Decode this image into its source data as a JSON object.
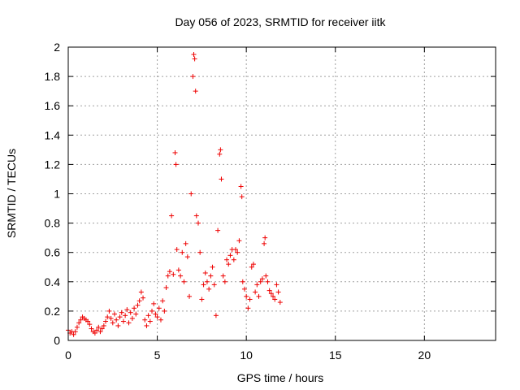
{
  "chart_data": {
    "type": "scatter",
    "title": "Day 056 of 2023, SRMTID for receiver iitk",
    "xlabel": "GPS time / hours",
    "ylabel": "SRMTID / TECUs",
    "xlim": [
      0,
      24
    ],
    "ylim": [
      0,
      2
    ],
    "xticks": [
      0,
      5,
      10,
      15,
      20
    ],
    "xtick_labels": [
      "0",
      "5",
      "10",
      "15",
      "20"
    ],
    "yticks": [
      0,
      0.2,
      0.4,
      0.6,
      0.8,
      1,
      1.2,
      1.4,
      1.6,
      1.8,
      2
    ],
    "ytick_labels": [
      "0",
      "0.2",
      "0.4",
      "0.6",
      "0.8",
      "1",
      "1.2",
      "1.4",
      "1.6",
      "1.8",
      "2"
    ],
    "grid": true,
    "marker": "+",
    "series_color": "#ee0000",
    "series": [
      {
        "name": "SRMTID",
        "points": [
          [
            0.0,
            0.07
          ],
          [
            0.1,
            0.05
          ],
          [
            0.2,
            0.06
          ],
          [
            0.3,
            0.04
          ],
          [
            0.4,
            0.06
          ],
          [
            0.5,
            0.09
          ],
          [
            0.6,
            0.12
          ],
          [
            0.7,
            0.14
          ],
          [
            0.8,
            0.16
          ],
          [
            0.9,
            0.15
          ],
          [
            1.0,
            0.14
          ],
          [
            1.1,
            0.13
          ],
          [
            1.2,
            0.11
          ],
          [
            1.3,
            0.08
          ],
          [
            1.4,
            0.06
          ],
          [
            1.5,
            0.05
          ],
          [
            1.6,
            0.07
          ],
          [
            1.7,
            0.09
          ],
          [
            1.8,
            0.06
          ],
          [
            1.9,
            0.08
          ],
          [
            2.0,
            0.1
          ],
          [
            2.1,
            0.13
          ],
          [
            2.2,
            0.16
          ],
          [
            2.3,
            0.2
          ],
          [
            2.4,
            0.15
          ],
          [
            2.5,
            0.12
          ],
          [
            2.6,
            0.18
          ],
          [
            2.7,
            0.14
          ],
          [
            2.8,
            0.1
          ],
          [
            2.9,
            0.16
          ],
          [
            3.0,
            0.19
          ],
          [
            3.1,
            0.13
          ],
          [
            3.2,
            0.17
          ],
          [
            3.3,
            0.21
          ],
          [
            3.4,
            0.12
          ],
          [
            3.5,
            0.19
          ],
          [
            3.6,
            0.15
          ],
          [
            3.7,
            0.22
          ],
          [
            3.8,
            0.18
          ],
          [
            3.9,
            0.24
          ],
          [
            4.0,
            0.27
          ],
          [
            4.1,
            0.33
          ],
          [
            4.2,
            0.29
          ],
          [
            4.3,
            0.14
          ],
          [
            4.4,
            0.1
          ],
          [
            4.5,
            0.17
          ],
          [
            4.6,
            0.13
          ],
          [
            4.7,
            0.2
          ],
          [
            4.8,
            0.25
          ],
          [
            4.9,
            0.18
          ],
          [
            5.0,
            0.16
          ],
          [
            5.1,
            0.22
          ],
          [
            5.2,
            0.14
          ],
          [
            5.3,
            0.27
          ],
          [
            5.4,
            0.2
          ],
          [
            5.5,
            0.36
          ],
          [
            5.6,
            0.44
          ],
          [
            5.7,
            0.47
          ],
          [
            5.8,
            0.85
          ],
          [
            5.9,
            0.45
          ],
          [
            6.0,
            1.28
          ],
          [
            6.05,
            1.2
          ],
          [
            6.1,
            0.62
          ],
          [
            6.2,
            0.48
          ],
          [
            6.3,
            0.44
          ],
          [
            6.4,
            0.6
          ],
          [
            6.5,
            0.4
          ],
          [
            6.6,
            0.66
          ],
          [
            6.7,
            0.57
          ],
          [
            6.8,
            0.3
          ],
          [
            6.9,
            1.0
          ],
          [
            7.0,
            1.8
          ],
          [
            7.05,
            1.95
          ],
          [
            7.1,
            1.92
          ],
          [
            7.15,
            1.7
          ],
          [
            7.2,
            0.85
          ],
          [
            7.3,
            0.8
          ],
          [
            7.4,
            0.6
          ],
          [
            7.5,
            0.28
          ],
          [
            7.6,
            0.38
          ],
          [
            7.7,
            0.46
          ],
          [
            7.8,
            0.4
          ],
          [
            7.9,
            0.35
          ],
          [
            8.0,
            0.44
          ],
          [
            8.1,
            0.5
          ],
          [
            8.2,
            0.38
          ],
          [
            8.3,
            0.17
          ],
          [
            8.4,
            0.75
          ],
          [
            8.5,
            1.27
          ],
          [
            8.55,
            1.3
          ],
          [
            8.6,
            1.1
          ],
          [
            8.7,
            0.44
          ],
          [
            8.8,
            0.4
          ],
          [
            8.9,
            0.55
          ],
          [
            9.0,
            0.52
          ],
          [
            9.1,
            0.58
          ],
          [
            9.2,
            0.62
          ],
          [
            9.3,
            0.55
          ],
          [
            9.4,
            0.62
          ],
          [
            9.5,
            0.6
          ],
          [
            9.6,
            0.68
          ],
          [
            9.7,
            1.05
          ],
          [
            9.75,
            0.98
          ],
          [
            9.8,
            0.4
          ],
          [
            9.9,
            0.35
          ],
          [
            10.0,
            0.3
          ],
          [
            10.1,
            0.22
          ],
          [
            10.2,
            0.28
          ],
          [
            10.3,
            0.5
          ],
          [
            10.4,
            0.52
          ],
          [
            10.5,
            0.33
          ],
          [
            10.6,
            0.38
          ],
          [
            10.7,
            0.3
          ],
          [
            10.8,
            0.4
          ],
          [
            10.9,
            0.42
          ],
          [
            11.0,
            0.66
          ],
          [
            11.05,
            0.7
          ],
          [
            11.1,
            0.44
          ],
          [
            11.2,
            0.4
          ],
          [
            11.3,
            0.34
          ],
          [
            11.4,
            0.32
          ],
          [
            11.5,
            0.3
          ],
          [
            11.6,
            0.28
          ],
          [
            11.7,
            0.38
          ],
          [
            11.8,
            0.33
          ],
          [
            11.9,
            0.26
          ]
        ]
      }
    ]
  }
}
